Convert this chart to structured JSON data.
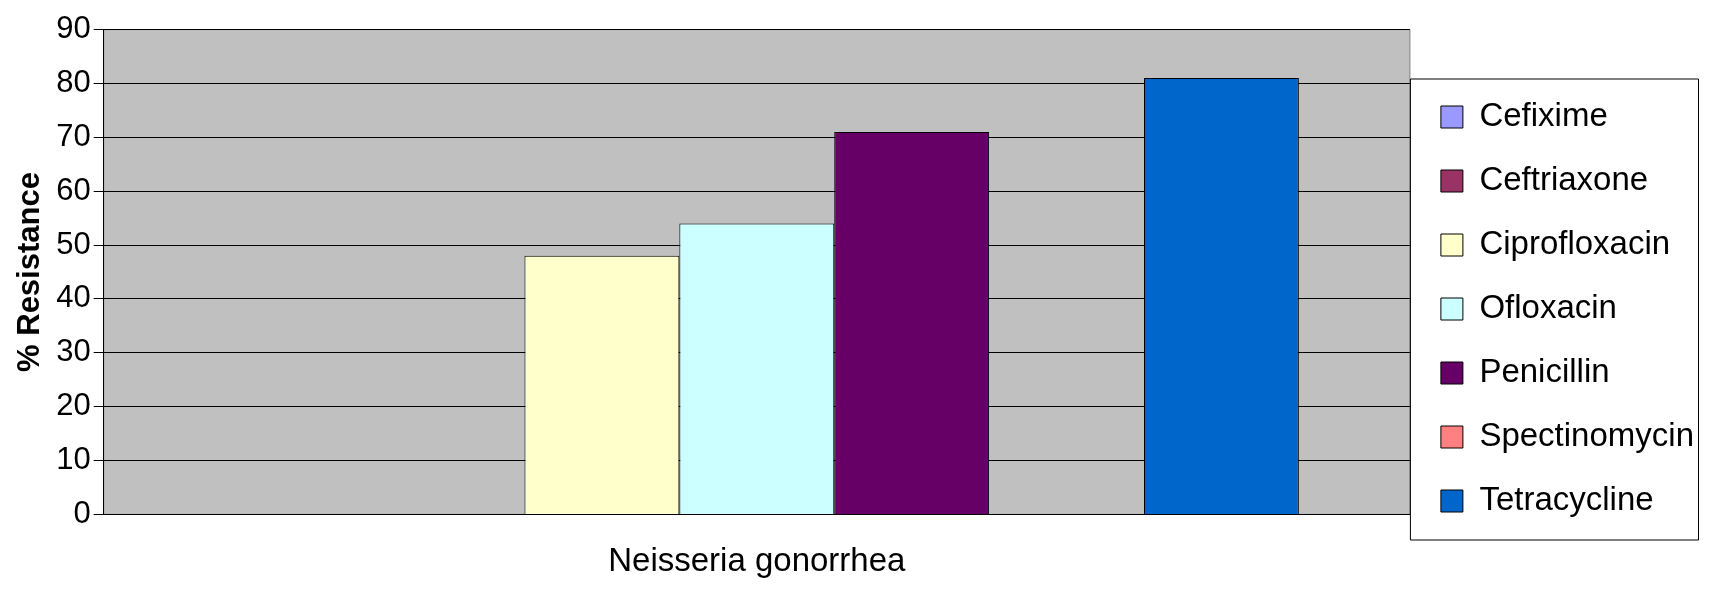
{
  "chart_data": {
    "type": "bar",
    "categories": [
      "Neisseria gonorrhea"
    ],
    "ylabel": "% Resistance",
    "ylim": [
      0,
      90
    ],
    "yticks": [
      0,
      10,
      20,
      30,
      40,
      50,
      60,
      70,
      80,
      90
    ],
    "grid": "y",
    "legend": "right",
    "series": [
      {
        "name": "Cefixime",
        "color": "#9999ff",
        "values": [
          0
        ]
      },
      {
        "name": "Ceftriaxone",
        "color": "#993366",
        "values": [
          0
        ]
      },
      {
        "name": "Ciprofloxacin",
        "color": "#ffffcc",
        "values": [
          48
        ]
      },
      {
        "name": "Ofloxacin",
        "color": "#ccffff",
        "values": [
          54
        ]
      },
      {
        "name": "Penicillin",
        "color": "#660066",
        "values": [
          71
        ]
      },
      {
        "name": "Spectinomycin",
        "color": "#ff8080",
        "values": [
          0
        ]
      },
      {
        "name": "Tetracycline",
        "color": "#0066cc",
        "values": [
          81
        ]
      }
    ]
  }
}
